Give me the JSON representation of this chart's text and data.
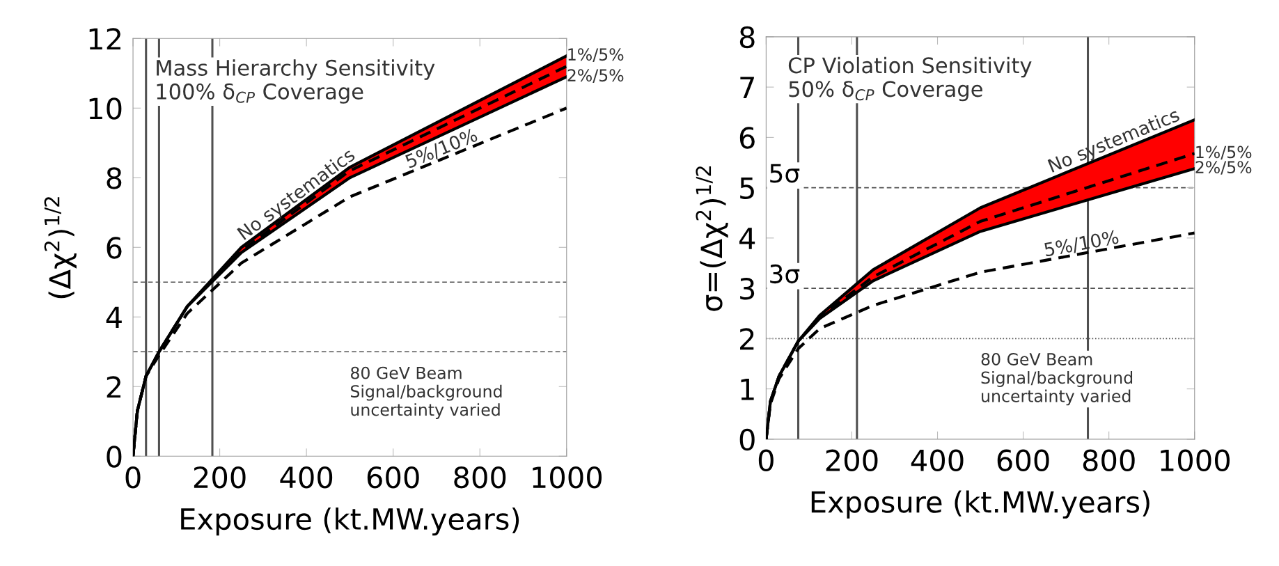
{
  "chart_data": [
    {
      "type": "line",
      "xlabel": "Exposure (kt.MW.years)",
      "ylabel": "(Δχ$^{2}$)$^{1/2}$",
      "xlim": [
        0,
        1000
      ],
      "ylim": [
        0,
        12
      ],
      "xticks": [
        0,
        200,
        400,
        600,
        800,
        1000
      ],
      "yticks": [
        0,
        2,
        4,
        6,
        8,
        10,
        12
      ],
      "grid": false,
      "legend": false,
      "series": [
        {
          "color": "#000000",
          "line_style": "solid",
          "x": [
            0,
            10,
            30,
            60,
            125,
            250,
            500,
            1000
          ],
          "values": [
            0,
            1.3,
            2.3,
            3.0,
            4.3,
            6.0,
            8.3,
            11.5
          ]
        },
        {
          "color": "#000000",
          "line_style": "dashed",
          "x": [
            0,
            10,
            30,
            60,
            125,
            250,
            500,
            1000
          ],
          "values": [
            0,
            1.3,
            2.3,
            3.0,
            4.3,
            5.9,
            8.2,
            11.2
          ],
          "lower": [
            0,
            1.3,
            2.3,
            3.0,
            4.3,
            5.85,
            8.0,
            10.9
          ],
          "upper": [
            0,
            1.3,
            2.3,
            3.0,
            4.3,
            6.0,
            8.3,
            11.5
          ]
        },
        {
          "color": "#000000",
          "line_style": "solid",
          "x": [
            0,
            10,
            30,
            60,
            125,
            250,
            500,
            1000
          ],
          "values": [
            0,
            1.3,
            2.3,
            3.0,
            4.3,
            5.85,
            8.0,
            10.9
          ]
        },
        {
          "color": "#000000",
          "line_style": "dashed",
          "x": [
            0,
            10,
            30,
            60,
            125,
            250,
            500,
            1000
          ],
          "values": [
            0,
            1.3,
            2.3,
            2.9,
            4.1,
            5.55,
            7.45,
            10.0
          ]
        }
      ],
      "ref_lines": [
        {
          "axis": "x",
          "value": 30,
          "color": "#505050",
          "line_style": "solid"
        },
        {
          "axis": "x",
          "value": 60,
          "color": "#505050",
          "line_style": "solid"
        },
        {
          "axis": "x",
          "value": 183,
          "color": "#505050",
          "line_style": "solid"
        },
        {
          "axis": "y",
          "value": 5,
          "color": "#505050",
          "line_style": "dashed"
        },
        {
          "axis": "y",
          "value": 3,
          "color": "#505050",
          "line_style": "dashed"
        }
      ],
      "annotations": [
        "Mass Hierarchy Sensitivity\n100% δ$_{CP}$ Coverage",
        "80 GeV Beam\nSignal/background\nuncertainty varied",
        {
          "text": "No systematics",
          "x": 390,
          "y": 7.29
        },
        {
          "text": "5%/10%",
          "x": 720,
          "y": 8.57
        },
        {
          "text": "1%/5%",
          "x": 1000,
          "y": 11.5
        },
        {
          "text": "2%/5%",
          "x": 1000,
          "y": 10.9
        }
      ]
    },
    {
      "type": "line",
      "xlabel": "Exposure (kt.MW.years)",
      "ylabel": "σ=(Δχ$^{2}$)$^{1/2}$",
      "xlim": [
        0,
        1000
      ],
      "ylim": [
        0,
        8
      ],
      "xticks": [
        0,
        200,
        400,
        600,
        800,
        1000
      ],
      "yticks": [
        0,
        1,
        2,
        3,
        4,
        5,
        6,
        7,
        8
      ],
      "grid": false,
      "legend": false,
      "series": [
        {
          "color": "#000000",
          "line_style": "solid",
          "x": [
            0,
            10,
            30,
            75,
            125,
            250,
            500,
            1000
          ],
          "values": [
            0,
            0.75,
            1.25,
            1.95,
            2.46,
            3.37,
            4.6,
            6.35
          ]
        },
        {
          "color": "#000000",
          "line_style": "dashed",
          "x": [
            0,
            10,
            30,
            75,
            125,
            250,
            500,
            1000
          ],
          "values": [
            0,
            0.75,
            1.25,
            1.95,
            2.43,
            3.23,
            4.33,
            5.68
          ],
          "lower": [
            0,
            0.75,
            1.25,
            1.95,
            2.4,
            3.15,
            4.13,
            5.38
          ],
          "upper": [
            0,
            0.75,
            1.25,
            1.95,
            2.46,
            3.37,
            4.6,
            6.35
          ]
        },
        {
          "color": "#000000",
          "line_style": "solid",
          "x": [
            0,
            10,
            30,
            75,
            125,
            250,
            500,
            1000
          ],
          "values": [
            0,
            0.75,
            1.25,
            1.95,
            2.4,
            3.15,
            4.13,
            5.38
          ]
        },
        {
          "color": "#000000",
          "line_style": "dashed",
          "x": [
            0,
            10,
            30,
            75,
            125,
            250,
            500,
            1000
          ],
          "values": [
            0,
            0.7,
            1.2,
            1.8,
            2.2,
            2.66,
            3.32,
            4.1
          ]
        }
      ],
      "ref_lines": [
        {
          "axis": "x",
          "value": 75,
          "color": "#505050",
          "line_style": "solid"
        },
        {
          "axis": "x",
          "value": 212,
          "color": "#505050",
          "line_style": "solid"
        },
        {
          "axis": "x",
          "value": 751,
          "color": "#505050",
          "line_style": "solid"
        },
        {
          "axis": "y",
          "value": 5,
          "label": "5σ",
          "color": "#505050",
          "line_style": "dashed"
        },
        {
          "axis": "y",
          "value": 3,
          "label": "3σ",
          "color": "#505050",
          "line_style": "dashed"
        },
        {
          "axis": "y",
          "value": 2,
          "color": "#505050",
          "line_style": "dotted"
        }
      ],
      "annotations": [
        "CP Violation Sensitivity\n50% δ$_{CP}$ Coverage",
        "80 GeV Beam\nSignal/background\nuncertainty varied",
        {
          "text": "No systematics",
          "x": 820,
          "y": 5.75
        },
        {
          "text": "5%/10%",
          "x": 740,
          "y": 3.69
        },
        {
          "text": "1%/5%",
          "x": 1000,
          "y": 5.68
        },
        {
          "text": "2%/5%",
          "x": 1000,
          "y": 5.38
        }
      ]
    }
  ]
}
